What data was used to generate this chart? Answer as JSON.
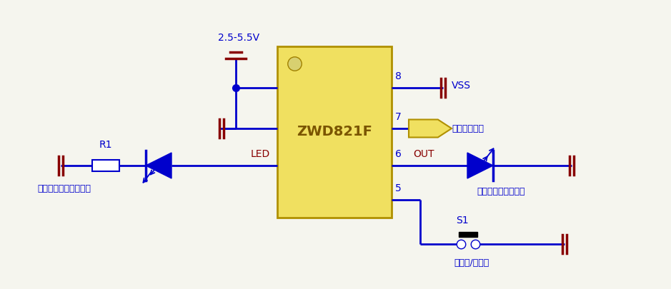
{
  "bg_color": "#f5f5ee",
  "blue": "#0000cc",
  "red": "#880000",
  "black": "#000000",
  "gold_fill": "#f0e060",
  "gold_edge": "#b09000",
  "chip_label": "ZWD821F",
  "title_vss": "VSS",
  "title_wireless": "无线信号输入",
  "title_out": "OUT",
  "title_output": "输出（初始低电平）",
  "title_led": "LED",
  "title_r1": "R1",
  "title_indicator": "指示灯（初始低电平）",
  "title_power": "2.5-5.5V",
  "title_s1": "S1",
  "title_switch": "开关键/学习键",
  "pin8": "8",
  "pin7": "7",
  "pin6": "6",
  "pin5": "5"
}
